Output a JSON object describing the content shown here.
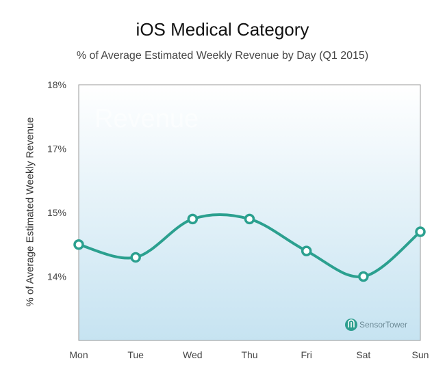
{
  "header": {
    "title": "iOS Medical Category",
    "subtitle": "% of Average Estimated Weekly Revenue by Day (Q1 2015)"
  },
  "watermark": "Revenue",
  "brand": {
    "name": "SensorTower",
    "icon": "sensor-tower-logo-icon",
    "color": "#2e9e8f"
  },
  "colors": {
    "line": "#2ba08f",
    "plot_top": "#ffffff",
    "plot_bottom": "#c6e3f1",
    "frame": "#999999"
  },
  "chart_data": {
    "type": "line",
    "title": "iOS Medical Category",
    "subtitle": "% of Average Estimated Weekly Revenue by Day (Q1 2015)",
    "xlabel": "",
    "ylabel": "% of  Average Estimated Weekly Revenue",
    "categories": [
      "Mon",
      "Tue",
      "Wed",
      "Thu",
      "Fri",
      "Sat",
      "Sun"
    ],
    "y_ticks": [
      {
        "label": "18%",
        "level": 4
      },
      {
        "label": "17%",
        "level": 3
      },
      {
        "label": "15%",
        "level": 2
      },
      {
        "label": "14%",
        "level": 1
      }
    ],
    "y_axis_note": "tick labels are evenly spaced but non-linear (18%, 17%, 15%, 14%); values given on the tick-position scale",
    "series": [
      {
        "values": [
          14.5,
          14.3,
          14.9,
          14.9,
          14.4,
          14.0,
          14.7
        ]
      }
    ],
    "ylim": [
      13,
      18
    ],
    "grid": false,
    "legend": "none"
  }
}
